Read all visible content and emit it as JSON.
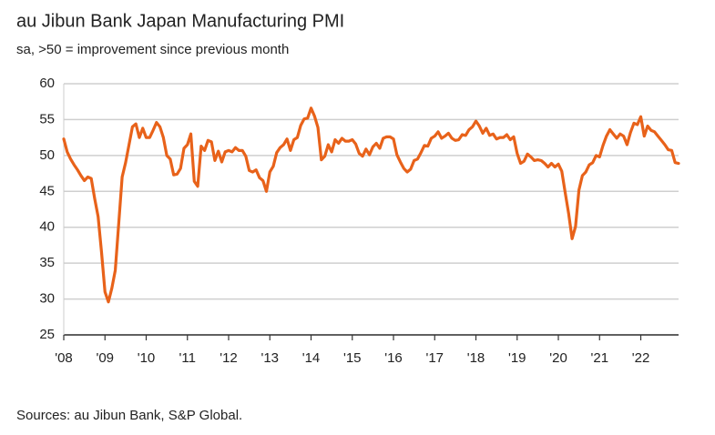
{
  "chart_data": {
    "type": "line",
    "title": "au Jibun Bank Japan Manufacturing PMI",
    "subtitle": "sa, >50 = improvement since previous month",
    "source": "Sources: au Jibun Bank, S&P Global.",
    "categories": [
      "'08",
      null,
      null,
      null,
      null,
      null,
      null,
      null,
      null,
      null,
      null,
      null,
      "'09",
      null,
      null,
      null,
      null,
      null,
      null,
      null,
      null,
      null,
      null,
      null,
      "'10",
      null,
      null,
      null,
      null,
      null,
      null,
      null,
      null,
      null,
      null,
      null,
      "'11",
      null,
      null,
      null,
      null,
      null,
      null,
      null,
      null,
      null,
      null,
      null,
      "'12",
      null,
      null,
      null,
      null,
      null,
      null,
      null,
      null,
      null,
      null,
      null,
      "'13",
      null,
      null,
      null,
      null,
      null,
      null,
      null,
      null,
      null,
      null,
      null,
      "'14",
      null,
      null,
      null,
      null,
      null,
      null,
      null,
      null,
      null,
      null,
      null,
      "'15",
      null,
      null,
      null,
      null,
      null,
      null,
      null,
      null,
      null,
      null,
      null,
      "'16",
      null,
      null,
      null,
      null,
      null,
      null,
      null,
      null,
      null,
      null,
      null,
      "'17",
      null,
      null,
      null,
      null,
      null,
      null,
      null,
      null,
      null,
      null,
      null,
      "'18",
      null,
      null,
      null,
      null,
      null,
      null,
      null,
      null,
      null,
      null,
      null,
      "'19",
      null,
      null,
      null,
      null,
      null,
      null,
      null,
      null,
      null,
      null,
      null,
      "'20",
      null,
      null,
      null,
      null,
      null,
      null,
      null,
      null,
      null,
      null,
      null,
      "'21",
      null,
      null,
      null,
      null,
      null,
      null,
      null,
      null,
      null,
      null,
      null,
      "'22",
      null,
      null,
      null,
      null,
      null,
      null,
      null,
      null,
      null,
      null,
      null
    ],
    "series": [
      {
        "color": "#e8621a",
        "values": [
          52.3,
          50.5,
          49.5,
          48.7,
          48.0,
          47.2,
          46.5,
          47.0,
          46.8,
          44.0,
          41.5,
          36.5,
          31.0,
          29.6,
          31.5,
          34.0,
          40.5,
          47.0,
          49.0,
          51.5,
          54.0,
          54.4,
          52.5,
          53.8,
          52.5,
          52.5,
          53.5,
          54.6,
          54.0,
          52.5,
          50.0,
          49.5,
          47.3,
          47.4,
          48.2,
          51.0,
          51.5,
          53.0,
          46.4,
          45.7,
          51.3,
          50.7,
          52.1,
          51.9,
          49.3,
          50.6,
          49.1,
          50.5,
          50.7,
          50.5,
          51.1,
          50.7,
          50.7,
          49.9,
          47.9,
          47.7,
          48.0,
          46.9,
          46.5,
          45.0,
          47.7,
          48.5,
          50.4,
          51.1,
          51.5,
          52.3,
          50.7,
          52.2,
          52.5,
          54.2,
          55.1,
          55.2,
          56.6,
          55.5,
          53.9,
          49.4,
          49.9,
          51.5,
          50.5,
          52.2,
          51.7,
          52.4,
          52.0,
          52.0,
          52.2,
          51.6,
          50.3,
          49.9,
          50.9,
          50.1,
          51.2,
          51.7,
          51.0,
          52.4,
          52.6,
          52.6,
          52.3,
          50.1,
          49.1,
          48.2,
          47.7,
          48.1,
          49.3,
          49.5,
          50.4,
          51.4,
          51.3,
          52.4,
          52.7,
          53.3,
          52.4,
          52.7,
          53.1,
          52.4,
          52.1,
          52.2,
          52.9,
          52.8,
          53.6,
          54.0,
          54.8,
          54.1,
          53.1,
          53.8,
          52.8,
          53.0,
          52.3,
          52.5,
          52.5,
          52.9,
          52.2,
          52.6,
          50.3,
          48.9,
          49.2,
          50.2,
          49.8,
          49.3,
          49.4,
          49.3,
          48.9,
          48.4,
          48.9,
          48.4,
          48.8,
          47.8,
          44.8,
          41.9,
          38.4,
          40.1,
          45.2,
          47.2,
          47.7,
          48.7,
          49.0,
          50.0,
          49.8,
          51.4,
          52.7,
          53.6,
          53.0,
          52.4,
          53.0,
          52.7,
          51.5,
          53.2,
          54.5,
          54.3,
          55.4,
          52.7,
          54.1,
          53.5,
          53.3,
          52.7,
          52.1,
          51.5,
          50.8,
          50.7,
          49.0,
          48.9
        ]
      }
    ],
    "ylim": [
      25,
      60
    ],
    "yticks": [
      25,
      30,
      35,
      40,
      45,
      50,
      55,
      60
    ],
    "grid": true
  }
}
